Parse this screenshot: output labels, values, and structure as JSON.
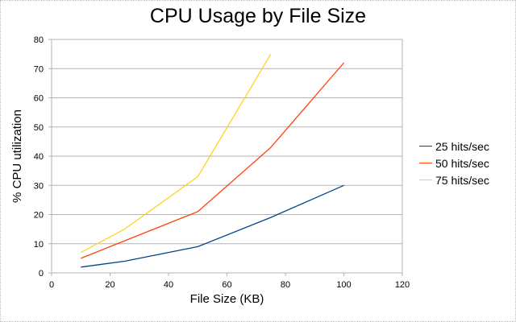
{
  "chart_data": {
    "type": "line",
    "title": "CPU Usage by File Size",
    "xlabel": "File Size (KB)",
    "ylabel": "% CPU utilization",
    "xlim": [
      0,
      120
    ],
    "ylim": [
      0,
      80
    ],
    "xticks": [
      0,
      20,
      40,
      60,
      80,
      100,
      120
    ],
    "yticks": [
      0,
      10,
      20,
      30,
      40,
      50,
      60,
      70,
      80
    ],
    "grid": "horizontal",
    "legend_position": "right",
    "series": [
      {
        "name": "25 hits/sec",
        "color": "#004586",
        "x": [
          10,
          25,
          50,
          75,
          100
        ],
        "y": [
          2,
          4,
          9,
          19,
          30
        ]
      },
      {
        "name": "50 hits/sec",
        "color": "#ff420e",
        "x": [
          10,
          25,
          50,
          75,
          100
        ],
        "y": [
          5,
          11,
          21,
          43,
          72
        ]
      },
      {
        "name": "75 hits/sec",
        "color": "#ffd320",
        "x": [
          10,
          25,
          50,
          75
        ],
        "y": [
          7,
          15,
          33,
          75
        ]
      }
    ]
  }
}
